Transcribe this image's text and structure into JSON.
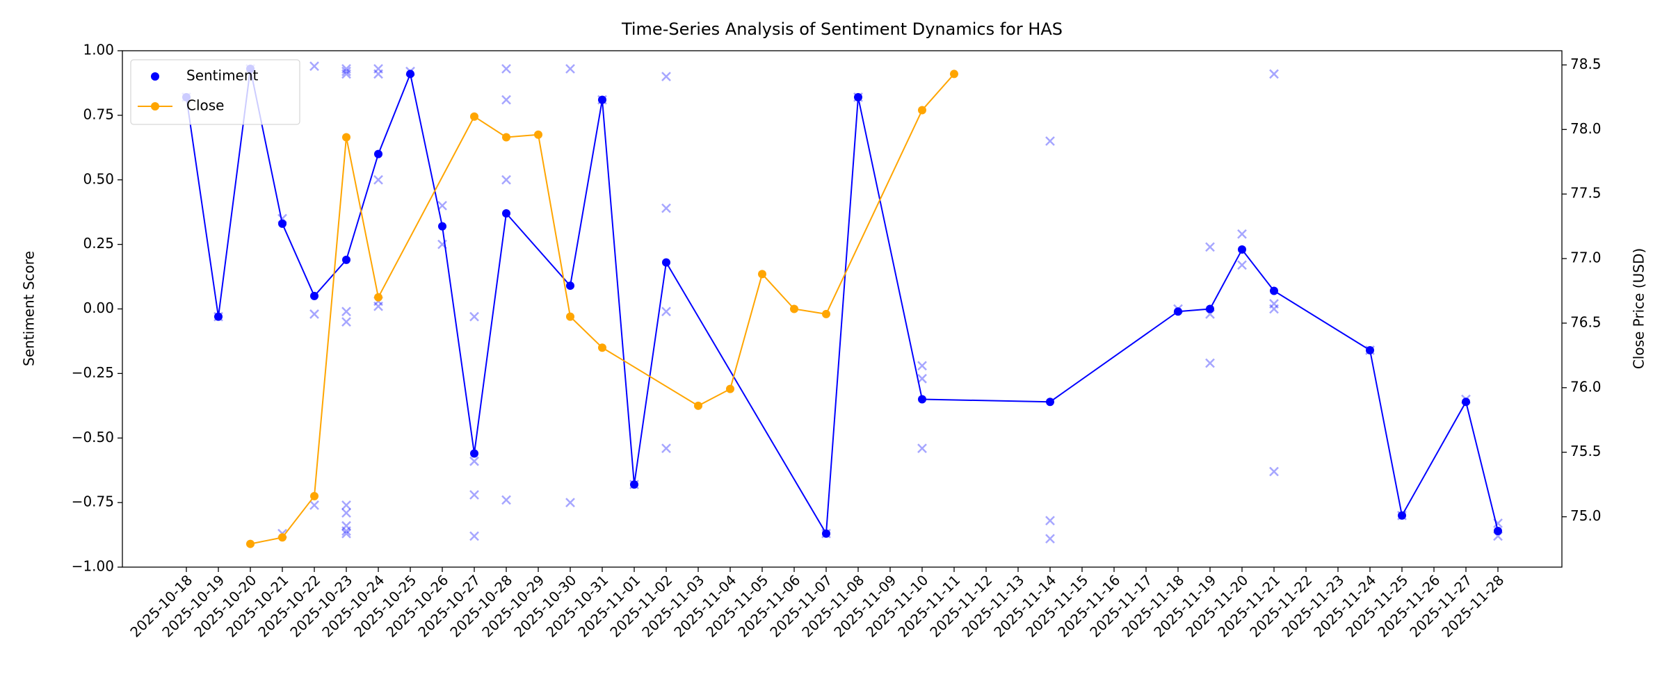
{
  "chart_data": {
    "type": "line",
    "title": "Time-Series Analysis of Sentiment Dynamics for HAS",
    "ylabel": "Sentiment Score",
    "y2label": "Close Price (USD)",
    "categories": [
      "2025-10-18",
      "2025-10-19",
      "2025-10-20",
      "2025-10-21",
      "2025-10-22",
      "2025-10-23",
      "2025-10-24",
      "2025-10-25",
      "2025-10-26",
      "2025-10-27",
      "2025-10-28",
      "2025-10-29",
      "2025-10-30",
      "2025-10-31",
      "2025-11-01",
      "2025-11-02",
      "2025-11-03",
      "2025-11-04",
      "2025-11-05",
      "2025-11-06",
      "2025-11-07",
      "2025-11-08",
      "2025-11-09",
      "2025-11-10",
      "2025-11-11",
      "2025-11-12",
      "2025-11-13",
      "2025-11-14",
      "2025-11-15",
      "2025-11-16",
      "2025-11-17",
      "2025-11-18",
      "2025-11-19",
      "2025-11-20",
      "2025-11-21",
      "2025-11-22",
      "2025-11-23",
      "2025-11-24",
      "2025-11-25",
      "2025-11-26",
      "2025-11-27",
      "2025-11-28"
    ],
    "ylim": [
      -1,
      1
    ],
    "yticks": [
      {
        "value": -1,
        "label": "−1.00"
      },
      {
        "value": -0.75,
        "label": "−0.75"
      },
      {
        "value": -0.5,
        "label": "−0.50"
      },
      {
        "value": -0.25,
        "label": "−0.25"
      },
      {
        "value": 0,
        "label": "0.00"
      },
      {
        "value": 0.25,
        "label": "0.25"
      },
      {
        "value": 0.5,
        "label": "0.50"
      },
      {
        "value": 0.75,
        "label": "0.75"
      },
      {
        "value": 1,
        "label": "1.00"
      }
    ],
    "y2lim": [
      74.61,
      78.61
    ],
    "y2ticks": [
      {
        "value": 75,
        "label": "75.0"
      },
      75.5,
      {
        "value": 76,
        "label": "76.0"
      },
      76.5,
      {
        "value": 77,
        "label": "77.0"
      },
      77.5,
      {
        "value": 78,
        "label": "78.0"
      },
      78.5
    ],
    "legend": "upper left",
    "series": [
      {
        "type": "scatter",
        "marker": "x",
        "color": "#0000ff",
        "alpha": 0.35,
        "x": [
          "2025-10-18",
          "2025-10-19",
          "2025-10-20",
          "2025-10-21",
          "2025-10-21",
          "2025-10-22",
          "2025-10-22",
          "2025-10-22",
          "2025-10-23",
          "2025-10-23",
          "2025-10-23",
          "2025-10-23",
          "2025-10-23",
          "2025-10-23",
          "2025-10-23",
          "2025-10-23",
          "2025-10-23",
          "2025-10-23",
          "2025-10-24",
          "2025-10-24",
          "2025-10-24",
          "2025-10-24",
          "2025-10-24",
          "2025-10-25",
          "2025-10-26",
          "2025-10-26",
          "2025-10-27",
          "2025-10-27",
          "2025-10-27",
          "2025-10-27",
          "2025-10-28",
          "2025-10-28",
          "2025-10-28",
          "2025-10-28",
          "2025-10-30",
          "2025-10-30",
          "2025-10-31",
          "2025-11-01",
          "2025-11-02",
          "2025-11-02",
          "2025-11-02",
          "2025-11-02",
          "2025-11-07",
          "2025-11-08",
          "2025-11-10",
          "2025-11-10",
          "2025-11-10",
          "2025-11-14",
          "2025-11-14",
          "2025-11-14",
          "2025-11-18",
          "2025-11-19",
          "2025-11-19",
          "2025-11-19",
          "2025-11-20",
          "2025-11-20",
          "2025-11-21",
          "2025-11-21",
          "2025-11-21",
          "2025-11-21",
          "2025-11-24",
          "2025-11-25",
          "2025-11-27",
          "2025-11-28",
          "2025-11-28"
        ],
        "values": [
          0.82,
          -0.03,
          0.93,
          0.35,
          -0.87,
          0.94,
          -0.02,
          -0.76,
          0.93,
          0.92,
          0.91,
          -0.01,
          -0.05,
          -0.76,
          -0.79,
          -0.84,
          -0.86,
          -0.87,
          0.93,
          0.91,
          0.5,
          0.03,
          0.01,
          0.92,
          0.4,
          0.25,
          -0.03,
          -0.59,
          -0.72,
          -0.88,
          0.93,
          0.81,
          0.5,
          -0.74,
          0.93,
          -0.75,
          0.81,
          -0.68,
          0.9,
          0.39,
          -0.01,
          -0.54,
          -0.87,
          0.82,
          -0.22,
          -0.27,
          -0.54,
          0.65,
          -0.82,
          -0.89,
          0.0,
          0.24,
          -0.02,
          -0.21,
          0.29,
          0.17,
          0.91,
          0.02,
          0.0,
          -0.63,
          -0.16,
          -0.8,
          -0.35,
          -0.83,
          -0.88
        ]
      },
      {
        "name": "Sentiment",
        "type": "line",
        "legend_line": false,
        "color": "#0000ff",
        "x": [
          "2025-10-18",
          "2025-10-19",
          "2025-10-20",
          "2025-10-21",
          "2025-10-22",
          "2025-10-23",
          "2025-10-24",
          "2025-10-25",
          "2025-10-26",
          "2025-10-27",
          "2025-10-28",
          "2025-10-30",
          "2025-10-31",
          "2025-11-01",
          "2025-11-02",
          "2025-11-07",
          "2025-11-08",
          "2025-11-10",
          "2025-11-14",
          "2025-11-18",
          "2025-11-19",
          "2025-11-20",
          "2025-11-21",
          "2025-11-24",
          "2025-11-25",
          "2025-11-27",
          "2025-11-28"
        ],
        "values": [
          0.82,
          -0.03,
          0.93,
          0.33,
          0.05,
          0.19,
          0.6,
          0.91,
          0.32,
          -0.56,
          0.37,
          0.09,
          0.81,
          -0.68,
          0.18,
          -0.87,
          0.82,
          -0.35,
          -0.36,
          -0.01,
          0.0,
          0.23,
          0.07,
          -0.16,
          -0.8,
          -0.36,
          -0.86
        ]
      },
      {
        "name": "Close",
        "type": "line",
        "legend_line": true,
        "color": "#ffa500",
        "axis": "y2",
        "x": [
          "2025-10-20",
          "2025-10-21",
          "2025-10-22",
          "2025-10-23",
          "2025-10-24",
          "2025-10-27",
          "2025-10-28",
          "2025-10-29",
          "2025-10-30",
          "2025-10-31",
          "2025-11-03",
          "2025-11-04",
          "2025-11-05",
          "2025-11-06",
          "2025-11-07",
          "2025-11-10",
          "2025-11-11"
        ],
        "values": [
          74.79,
          74.84,
          75.16,
          77.94,
          76.7,
          78.1,
          77.94,
          77.96,
          76.55,
          76.31,
          75.86,
          75.99,
          76.88,
          76.61,
          76.57,
          78.15,
          78.43
        ]
      }
    ]
  }
}
